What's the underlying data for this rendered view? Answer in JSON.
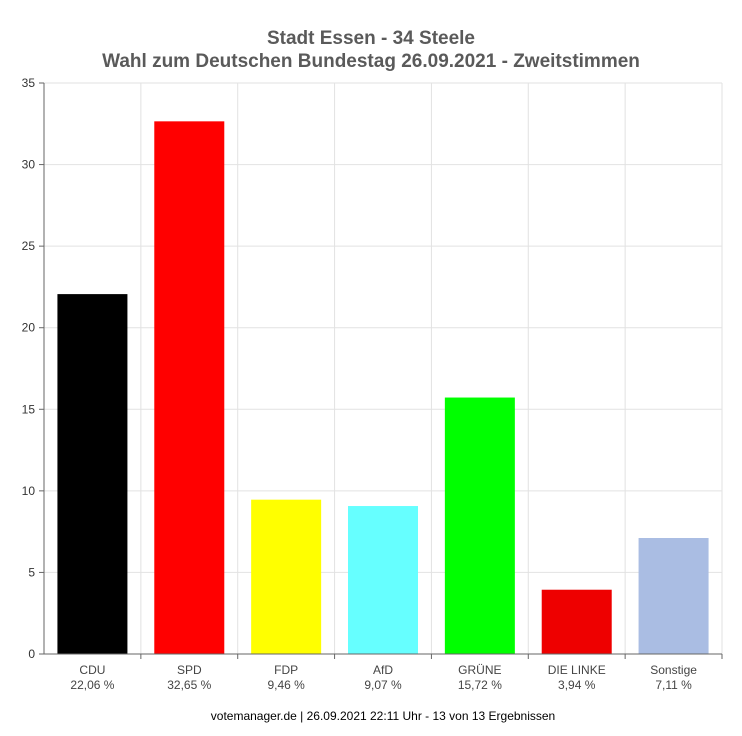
{
  "chart_data": {
    "type": "bar",
    "title": "Stadt Essen - 34 Steele",
    "subtitle": "Wahl zum Deutschen Bundestag 26.09.2021  - Zweitstimmen",
    "categories": [
      "CDU",
      "SPD",
      "FDP",
      "AfD",
      "GRÜNE",
      "DIE LINKE",
      "Sonstige"
    ],
    "value_labels": [
      "22,06 %",
      "32,65 %",
      "9,46 %",
      "9,07 %",
      "15,72 %",
      "3,94 %",
      "7,11 %"
    ],
    "values": [
      22.06,
      32.65,
      9.46,
      9.07,
      15.72,
      3.94,
      7.11
    ],
    "colors": [
      "#000000",
      "#ff0000",
      "#ffff00",
      "#66ffff",
      "#00ff00",
      "#ee0000",
      "#aabde3"
    ],
    "ylim": [
      0,
      35
    ],
    "yticks": [
      0,
      5,
      10,
      15,
      20,
      25,
      30,
      35
    ],
    "grid": true,
    "xlabel": "",
    "ylabel": ""
  },
  "footer": "votemanager.de | 26.09.2021 22:11 Uhr - 13 von 13 Ergebnissen"
}
